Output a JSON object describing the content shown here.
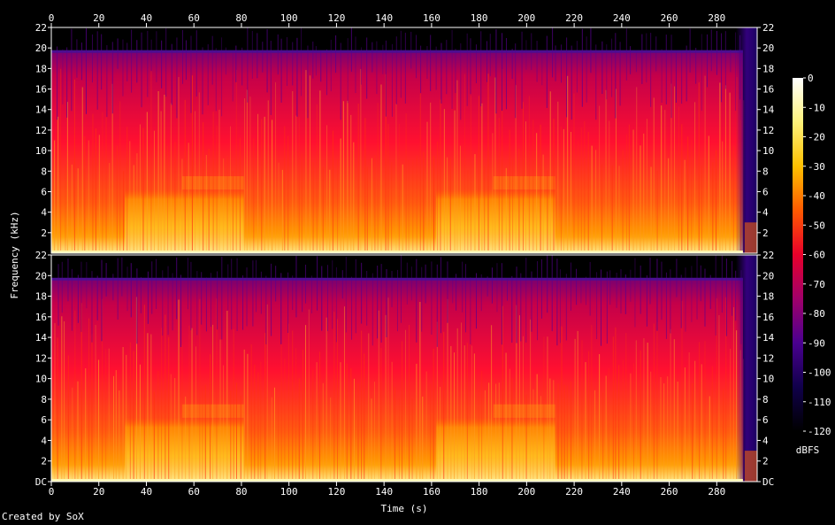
{
  "chart_data": {
    "type": "heatmap",
    "kind": "spectrogram",
    "channels": 2,
    "xlabel": "Time (s)",
    "ylabel": "Frequency (kHz)",
    "xlim": [
      0,
      297
    ],
    "ylim": [
      0,
      22
    ],
    "x_ticks": [
      0,
      20,
      40,
      60,
      80,
      100,
      120,
      140,
      160,
      180,
      200,
      220,
      240,
      260,
      280
    ],
    "y_ticks": [
      "DC",
      "2",
      "4",
      "6",
      "8",
      "10",
      "12",
      "14",
      "16",
      "18",
      "20",
      "22"
    ],
    "colorbar": {
      "label": "dBFS",
      "range": [
        -120,
        0
      ],
      "ticks": [
        "0",
        "-10",
        "-20",
        "-30",
        "-40",
        "-50",
        "-60",
        "-70",
        "-80",
        "-90",
        "-100",
        "-110",
        "-120"
      ],
      "colors": [
        "#ffffff",
        "#fff27a",
        "#ffc000",
        "#ff5a00",
        "#e8002a",
        "#a0006a",
        "#4a0090",
        "#10004a",
        "#000000"
      ]
    },
    "content_cutoff_khz": 19.7,
    "bright_sections_s": [
      [
        31,
        81
      ],
      [
        162,
        212
      ]
    ],
    "fade_out_start_s": 291,
    "credit": "Created by SoX"
  }
}
